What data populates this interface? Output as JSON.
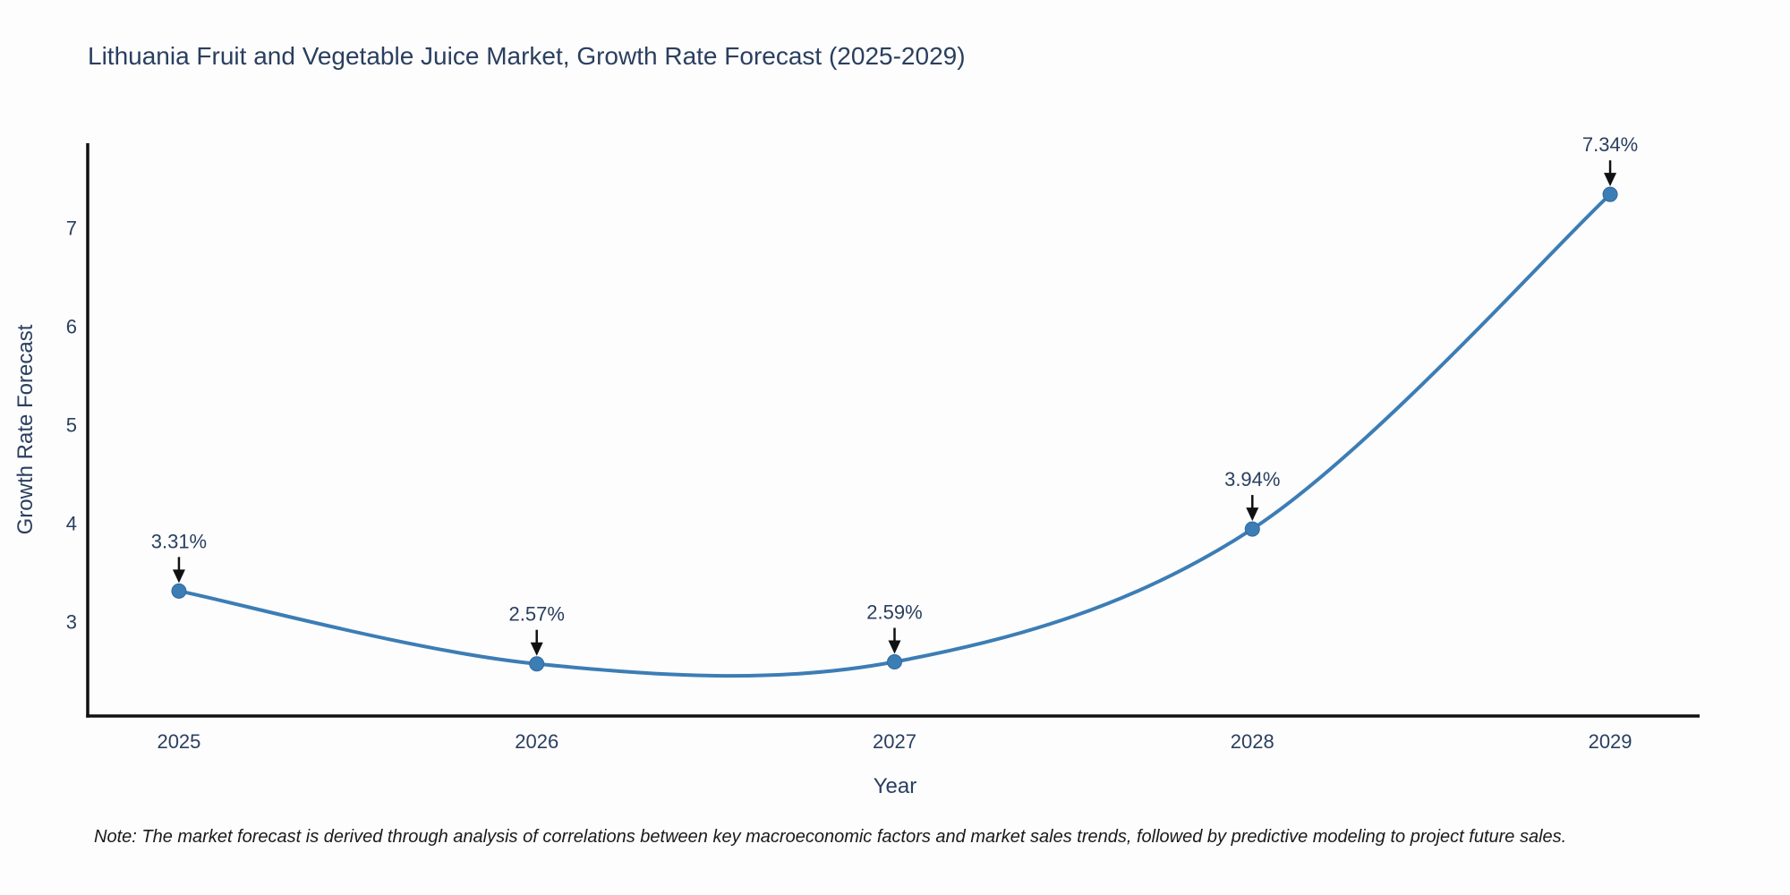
{
  "title": "Lithuania Fruit and Vegetable Juice Market, Growth Rate Forecast (2025-2029)",
  "note": "Note: The market forecast is derived through analysis of correlations between key macroeconomic factors and market sales trends, followed by predictive modeling to project future sales.",
  "chart_data": {
    "type": "line",
    "title": "Lithuania Fruit and Vegetable Juice Market, Growth Rate Forecast (2025-2029)",
    "xlabel": "Year",
    "ylabel": "Growth Rate Forecast",
    "x": [
      2025,
      2026,
      2027,
      2028,
      2029
    ],
    "values": [
      3.31,
      2.57,
      2.59,
      3.94,
      7.34
    ],
    "point_labels": [
      "3.31%",
      "2.57%",
      "2.59%",
      "3.94%",
      "7.34%"
    ],
    "x_tick_labels": [
      "2025",
      "2026",
      "2027",
      "2028",
      "2029"
    ],
    "yticks": [
      3,
      4,
      5,
      6,
      7
    ],
    "ylim": [
      2.04,
      7.86
    ],
    "xlim": [
      2024.745,
      2029.25
    ],
    "smoothing": "spline",
    "grid": false,
    "legend": "none",
    "annotations_arrow": "down",
    "colors": {
      "line": "#3c7db5",
      "marker": "#3c7db5",
      "marker_edge": "#31689e",
      "axis": "#111111",
      "text": "#2a3f5f",
      "arrow": "#111111",
      "note": "#1a1a1a",
      "background": "#fdfdfd"
    }
  }
}
